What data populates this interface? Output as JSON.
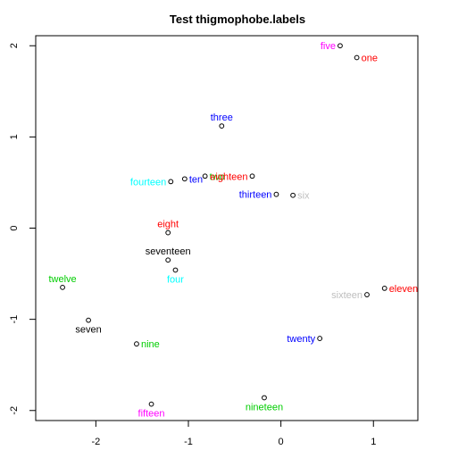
{
  "chart_data": {
    "type": "scatter",
    "title": "Test thigmophobe.labels",
    "xlabel": "",
    "ylabel": "",
    "xlim": [
      -2.65,
      1.48
    ],
    "ylim": [
      -2.11,
      2.11
    ],
    "x_ticks": [
      -2,
      -1,
      0,
      1
    ],
    "y_ticks": [
      -2,
      -1,
      0,
      1,
      2
    ],
    "grid": false,
    "legend": "none",
    "points": [
      {
        "label": "one",
        "x": 0.82,
        "y": 1.87,
        "color": "#ff0000",
        "side": "right"
      },
      {
        "label": "two",
        "x": -0.82,
        "y": 0.57,
        "color": "#00cd00",
        "side": "right"
      },
      {
        "label": "three",
        "x": -0.64,
        "y": 1.12,
        "color": "#0000ff",
        "side": "top"
      },
      {
        "label": "four",
        "x": -1.14,
        "y": -0.46,
        "color": "#00ffff",
        "side": "bottom"
      },
      {
        "label": "five",
        "x": 0.64,
        "y": 2.0,
        "color": "#ff00ff",
        "side": "left"
      },
      {
        "label": "six",
        "x": 0.13,
        "y": 0.36,
        "color": "#bebebe",
        "side": "right"
      },
      {
        "label": "seven",
        "x": -2.08,
        "y": -1.01,
        "color": "#000000",
        "side": "bottom"
      },
      {
        "label": "eight",
        "x": -1.22,
        "y": -0.05,
        "color": "#ff0000",
        "side": "top"
      },
      {
        "label": "nine",
        "x": -1.56,
        "y": -1.27,
        "color": "#00cd00",
        "side": "right"
      },
      {
        "label": "ten",
        "x": -1.04,
        "y": 0.54,
        "color": "#0000ff",
        "side": "right"
      },
      {
        "label": "eleven",
        "x": 1.12,
        "y": -0.66,
        "color": "#ff0000",
        "side": "right"
      },
      {
        "label": "twelve",
        "x": -2.36,
        "y": -0.65,
        "color": "#00cd00",
        "side": "top"
      },
      {
        "label": "thirteen",
        "x": -0.05,
        "y": 0.37,
        "color": "#0000ff",
        "side": "left"
      },
      {
        "label": "fourteen",
        "x": -1.19,
        "y": 0.51,
        "color": "#00ffff",
        "side": "left"
      },
      {
        "label": "fifteen",
        "x": -1.4,
        "y": -1.93,
        "color": "#ff00ff",
        "side": "bottom"
      },
      {
        "label": "sixteen",
        "x": 0.93,
        "y": -0.73,
        "color": "#bebebe",
        "side": "left"
      },
      {
        "label": "seventeen",
        "x": -1.22,
        "y": -0.35,
        "color": "#000000",
        "side": "top"
      },
      {
        "label": "eighteen",
        "x": -0.31,
        "y": 0.57,
        "color": "#ff0000",
        "side": "left"
      },
      {
        "label": "nineteen",
        "x": -0.18,
        "y": -1.86,
        "color": "#00cd00",
        "side": "bottom"
      },
      {
        "label": "twenty",
        "x": 0.42,
        "y": -1.21,
        "color": "#0000ff",
        "side": "left"
      }
    ]
  }
}
